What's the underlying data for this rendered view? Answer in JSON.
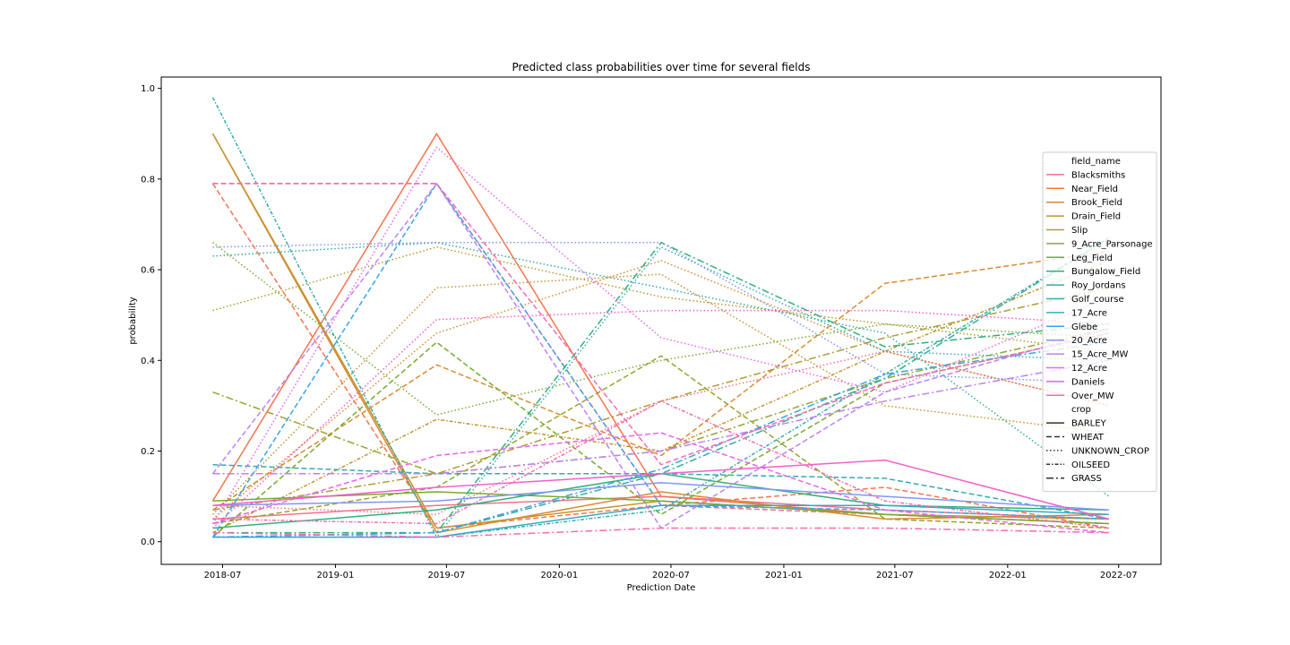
{
  "chart_data": {
    "type": "line",
    "title": "Predicted class probabilities over time for several fields",
    "xlabel": "Prediction Date",
    "ylabel": "probability",
    "x": [
      "2018-06-15",
      "2019-06-15",
      "2020-06-15",
      "2021-06-15",
      "2022-06-15"
    ],
    "xticks": [
      "2018-07",
      "2019-01",
      "2019-07",
      "2020-01",
      "2020-07",
      "2021-01",
      "2021-07",
      "2022-01",
      "2022-07"
    ],
    "xlim": [
      "2018-03-23",
      "2022-09-08"
    ],
    "yticks": [
      "0.0",
      "0.2",
      "0.4",
      "0.6",
      "0.8",
      "1.0"
    ],
    "ylim": [
      -0.05,
      1.025
    ],
    "grid": false,
    "legend_placement": "center-right",
    "hue_title": "field_name",
    "style_title": "crop",
    "fields": [
      {
        "name": "Blacksmiths",
        "color": "#f77189"
      },
      {
        "name": "Near_Field",
        "color": "#f7754f"
      },
      {
        "name": "Brook_Field",
        "color": "#dc8932"
      },
      {
        "name": "Drain_Field",
        "color": "#c39532"
      },
      {
        "name": "Slip",
        "color": "#ae9d31"
      },
      {
        "name": "9_Acre_Parsonage",
        "color": "#97a431"
      },
      {
        "name": "Leg_Field",
        "color": "#77ab31"
      },
      {
        "name": "Bungalow_Field",
        "color": "#33b07a"
      },
      {
        "name": "Roy_Jordans",
        "color": "#35ad9c"
      },
      {
        "name": "Golf_course",
        "color": "#36abae"
      },
      {
        "name": "17_Acre",
        "color": "#38a9c5"
      },
      {
        "name": "Glebe",
        "color": "#3ba3ec"
      },
      {
        "name": "20_Acre",
        "color": "#8197f4"
      },
      {
        "name": "15_Acre_MW",
        "color": "#bb83f4"
      },
      {
        "name": "12_Acre",
        "color": "#e866f4"
      },
      {
        "name": "Daniels",
        "color": "#f45fcc"
      },
      {
        "name": "Over_MW",
        "color": "#f66bad"
      }
    ],
    "crops": [
      {
        "name": "BARLEY",
        "dash": ""
      },
      {
        "name": "WHEAT",
        "dash": "6,3"
      },
      {
        "name": "UNKNOWN_CROP",
        "dash": "1.5,2.5"
      },
      {
        "name": "OILSEED",
        "dash": "4,2,1.5,2"
      },
      {
        "name": "GRASS",
        "dash": "8,3,2,3"
      }
    ],
    "series": [
      {
        "field": "Blacksmiths",
        "crop": "WHEAT",
        "values": [
          0.79,
          0.79,
          0.08,
          0.06,
          0.04
        ]
      },
      {
        "field": "Blacksmiths",
        "crop": "UNKNOWN_CROP",
        "values": [
          0.08,
          0.06,
          0.31,
          0.42,
          0.3
        ]
      },
      {
        "field": "Blacksmiths",
        "crop": "BARLEY",
        "values": [
          0.05,
          0.08,
          0.1,
          0.07,
          0.05
        ]
      },
      {
        "field": "Near_Field",
        "crop": "BARLEY",
        "values": [
          0.09,
          0.9,
          0.1,
          0.06,
          0.04
        ]
      },
      {
        "field": "Near_Field",
        "crop": "WHEAT",
        "values": [
          0.79,
          0.03,
          0.08,
          0.12,
          0.03
        ]
      },
      {
        "field": "Brook_Field",
        "crop": "WHEAT",
        "values": [
          0.07,
          0.39,
          0.19,
          0.57,
          0.64
        ]
      },
      {
        "field": "Brook_Field",
        "crop": "BARLEY",
        "values": [
          0.9,
          0.02,
          0.11,
          0.05,
          0.06
        ]
      },
      {
        "field": "Brook_Field",
        "crop": "UNKNOWN_CROP",
        "values": [
          0.05,
          0.46,
          0.62,
          0.42,
          0.3
        ]
      },
      {
        "field": "Drain_Field",
        "crop": "OILSEED",
        "values": [
          0.02,
          0.27,
          0.2,
          0.42,
          0.62
        ]
      },
      {
        "field": "Drain_Field",
        "crop": "UNKNOWN_CROP",
        "values": [
          0.06,
          0.56,
          0.59,
          0.3,
          0.24
        ]
      },
      {
        "field": "Drain_Field",
        "crop": "BARLEY",
        "values": [
          0.9,
          0.03,
          0.09,
          0.06,
          0.05
        ]
      },
      {
        "field": "Slip",
        "crop": "UNKNOWN_CROP",
        "values": [
          0.51,
          0.65,
          0.54,
          0.48,
          0.42
        ]
      },
      {
        "field": "Slip",
        "crop": "GRASS",
        "values": [
          0.07,
          0.15,
          0.31,
          0.45,
          0.56
        ]
      },
      {
        "field": "9_Acre_Parsonage",
        "crop": "GRASS",
        "values": [
          0.33,
          0.15,
          0.2,
          0.36,
          0.47
        ]
      },
      {
        "field": "9_Acre_Parsonage",
        "crop": "WHEAT",
        "values": [
          0.04,
          0.12,
          0.41,
          0.05,
          0.03
        ]
      },
      {
        "field": "Leg_Field",
        "crop": "BARLEY",
        "values": [
          0.09,
          0.11,
          0.09,
          0.06,
          0.04
        ]
      },
      {
        "field": "Leg_Field",
        "crop": "WHEAT",
        "values": [
          0.01,
          0.44,
          0.06,
          0.35,
          0.46
        ]
      },
      {
        "field": "Leg_Field",
        "crop": "UNKNOWN_CROP",
        "values": [
          0.66,
          0.28,
          0.4,
          0.48,
          0.45
        ]
      },
      {
        "field": "Bungalow_Field",
        "crop": "GRASS",
        "values": [
          0.02,
          0.02,
          0.66,
          0.43,
          0.48
        ]
      },
      {
        "field": "Bungalow_Field",
        "crop": "BARLEY",
        "values": [
          0.03,
          0.07,
          0.15,
          0.08,
          0.07
        ]
      },
      {
        "field": "Roy_Jordans",
        "crop": "UNKNOWN_CROP",
        "values": [
          0.63,
          0.66,
          0.56,
          0.46,
          0.1
        ]
      },
      {
        "field": "Roy_Jordans",
        "crop": "GRASS",
        "values": [
          0.01,
          0.02,
          0.15,
          0.36,
          0.67
        ]
      },
      {
        "field": "Golf_course",
        "crop": "OILSEED",
        "values": [
          0.98,
          0.01,
          0.07,
          0.37,
          0.67
        ]
      },
      {
        "field": "Golf_course",
        "crop": "WHEAT",
        "values": [
          0.17,
          0.15,
          0.15,
          0.14,
          0.05
        ]
      },
      {
        "field": "17_Acre",
        "crop": "BARLEY",
        "values": [
          0.01,
          0.01,
          0.08,
          0.08,
          0.06
        ]
      },
      {
        "field": "17_Acre",
        "crop": "UNKNOWN_CROP",
        "values": [
          0.01,
          0.01,
          0.65,
          0.42,
          0.4
        ]
      },
      {
        "field": "Glebe",
        "crop": "WHEAT",
        "values": [
          0.01,
          0.79,
          0.08,
          0.07,
          0.05
        ]
      },
      {
        "field": "Glebe",
        "crop": "GRASS",
        "values": [
          0.01,
          0.02,
          0.16,
          0.37,
          0.44
        ]
      },
      {
        "field": "20_Acre",
        "crop": "UNKNOWN_CROP",
        "values": [
          0.65,
          0.66,
          0.66,
          0.37,
          0.35
        ]
      },
      {
        "field": "20_Acre",
        "crop": "BARLEY",
        "values": [
          0.08,
          0.09,
          0.13,
          0.1,
          0.07
        ]
      },
      {
        "field": "15_Acre_MW",
        "crop": "WHEAT",
        "values": [
          0.15,
          0.79,
          0.03,
          0.33,
          0.47
        ]
      },
      {
        "field": "15_Acre_MW",
        "crop": "GRASS",
        "values": [
          0.15,
          0.15,
          0.2,
          0.31,
          0.4
        ]
      },
      {
        "field": "12_Acre",
        "crop": "UNKNOWN_CROP",
        "values": [
          0.04,
          0.87,
          0.45,
          0.33,
          0.54
        ]
      },
      {
        "field": "12_Acre",
        "crop": "WHEAT",
        "values": [
          0.04,
          0.19,
          0.24,
          0.07,
          0.02
        ]
      },
      {
        "field": "Daniels",
        "crop": "BARLEY",
        "values": [
          0.08,
          0.12,
          0.15,
          0.18,
          0.05
        ]
      },
      {
        "field": "Daniels",
        "crop": "UNKNOWN_CROP",
        "values": [
          0.03,
          0.49,
          0.51,
          0.51,
          0.48
        ]
      },
      {
        "field": "Over_MW",
        "crop": "WHEAT",
        "values": [
          0.79,
          0.79,
          0.17,
          0.35,
          0.46
        ]
      },
      {
        "field": "Over_MW",
        "crop": "OILSEED",
        "values": [
          0.05,
          0.04,
          0.31,
          0.09,
          0.03
        ]
      },
      {
        "field": "Over_MW",
        "crop": "GRASS",
        "values": [
          0.02,
          0.01,
          0.03,
          0.03,
          0.02
        ]
      }
    ]
  }
}
